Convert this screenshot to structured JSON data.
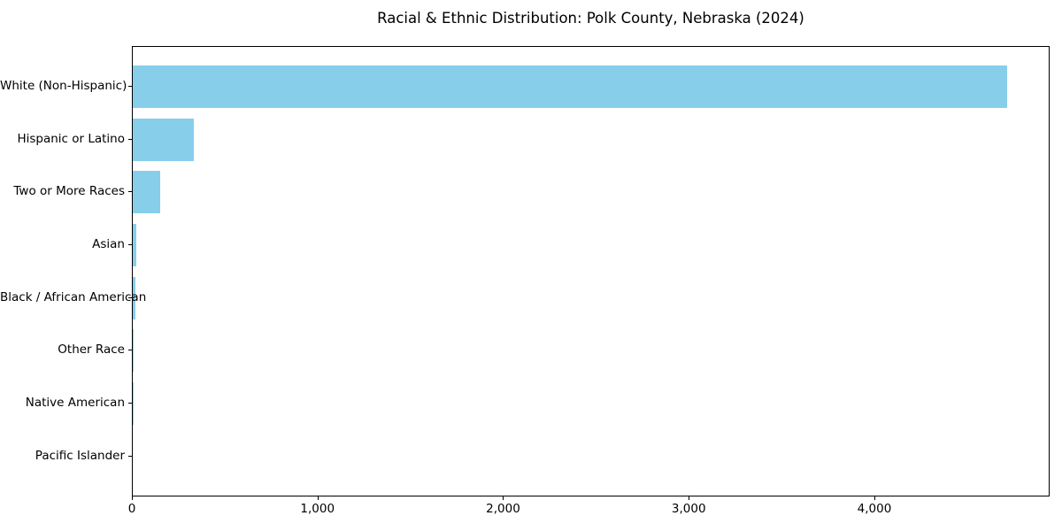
{
  "title": "Racial & Ethnic Distribution: Polk County, Nebraska (2024)",
  "chart_data": {
    "type": "bar",
    "orientation": "horizontal",
    "title": "Racial & Ethnic Distribution: Polk County, Nebraska (2024)",
    "xlabel": "",
    "ylabel": "",
    "categories": [
      "White (Non-Hispanic)",
      "Hispanic or Latino",
      "Two or More Races",
      "Asian",
      "Black / African American",
      "Other Race",
      "Native American",
      "Pacific Islander"
    ],
    "values": [
      4710,
      330,
      148,
      18,
      15,
      4,
      3,
      0
    ],
    "xlim": [
      0,
      4944
    ],
    "x_ticks": [
      0,
      1000,
      2000,
      3000,
      4000
    ],
    "x_tick_labels": [
      "0",
      "1,000",
      "2,000",
      "3,000",
      "4,000"
    ],
    "bar_color": "#87CEEB",
    "grid": false,
    "legend": null,
    "background_color": "#ffffff",
    "frame_color": "#000000"
  }
}
